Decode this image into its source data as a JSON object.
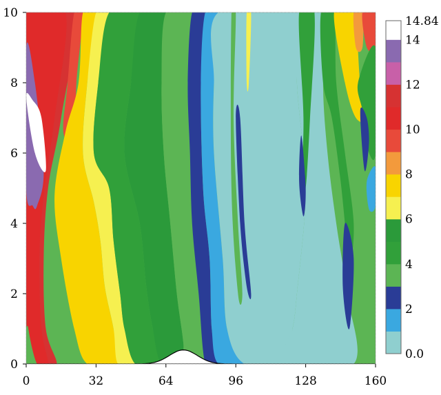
{
  "chart_data": {
    "type": "heatmap",
    "title": "",
    "xlabel": "",
    "ylabel": "",
    "xlim": [
      0,
      160
    ],
    "ylim": [
      0,
      10
    ],
    "x_ticks": [
      "0",
      "32",
      "64",
      "96",
      "128",
      "160"
    ],
    "y_ticks": [
      "0",
      "2",
      "4",
      "6",
      "8",
      "10"
    ],
    "x_tick_values": [
      0,
      32,
      64,
      96,
      128,
      160
    ],
    "y_tick_values": [
      0,
      2,
      4,
      6,
      8,
      10
    ],
    "colorbar": {
      "min": 0.0,
      "max": 14.84,
      "boundaries": [
        0,
        1,
        2,
        3,
        4,
        5,
        6,
        7,
        8,
        9,
        10,
        11,
        12,
        13,
        14,
        14.84
      ],
      "colors": [
        "#8fcfcf",
        "#3aa8e0",
        "#2a3c96",
        "#5cb554",
        "#31a03a",
        "#2b9a3a",
        "#f6f050",
        "#f8d400",
        "#f39a3c",
        "#e84a3a",
        "#e02a2a",
        "#d63232",
        "#c860a8",
        "#8a6ab0",
        "#ffffff"
      ],
      "tick_labels": [
        "0.0",
        "2",
        "4",
        "6",
        "8",
        "10",
        "12",
        "14",
        "14.84"
      ],
      "tick_values": [
        0,
        2,
        4,
        6,
        8,
        10,
        12,
        14,
        14.84
      ]
    },
    "bottom_bump": {
      "center_x": 72,
      "height": 0.4
    },
    "bands": [
      {
        "level": 11,
        "points": [
          [
            0,
            10
          ],
          [
            22,
            10
          ],
          [
            16,
            7
          ],
          [
            10,
            5
          ],
          [
            8,
            3
          ],
          [
            9,
            1
          ],
          [
            14,
            0
          ],
          [
            7,
            0
          ],
          [
            2,
            1
          ],
          [
            0,
            2.5
          ]
        ]
      },
      {
        "level": 10,
        "points": [
          [
            0,
            10
          ],
          [
            18,
            10
          ],
          [
            13,
            7
          ],
          [
            8,
            4.8
          ],
          [
            6,
            3
          ],
          [
            7,
            1
          ],
          [
            10,
            0
          ],
          [
            5,
            0
          ],
          [
            1,
            1
          ],
          [
            0,
            2
          ]
        ]
      },
      {
        "level": 13,
        "points": [
          [
            0,
            9
          ],
          [
            4,
            8
          ],
          [
            8,
            5.5
          ],
          [
            5,
            4.5
          ],
          [
            3,
            4.5
          ],
          [
            0,
            5
          ]
        ]
      },
      {
        "level": 14,
        "points": [
          [
            0,
            7.6
          ],
          [
            4,
            6
          ],
          [
            9,
            5.5
          ],
          [
            7,
            7
          ],
          [
            3,
            7.5
          ]
        ]
      },
      {
        "level": 9,
        "points": [
          [
            22,
            10
          ],
          [
            26,
            10
          ],
          [
            23,
            8
          ],
          [
            22,
            6.2
          ],
          [
            17,
            6.6
          ],
          [
            19,
            8
          ]
        ]
      },
      {
        "level": 7,
        "points": [
          [
            26,
            10
          ],
          [
            32,
            10
          ],
          [
            28,
            8
          ],
          [
            26,
            6
          ],
          [
            31,
            4.6
          ],
          [
            34,
            3.5
          ],
          [
            36,
            2.2
          ],
          [
            40,
            1
          ],
          [
            42,
            0
          ],
          [
            28,
            0
          ],
          [
            22,
            1
          ],
          [
            16,
            3
          ],
          [
            13,
            4.8
          ],
          [
            18,
            6.6
          ],
          [
            24,
            8
          ]
        ]
      },
      {
        "level": 6,
        "points": [
          [
            32,
            10
          ],
          [
            38,
            10
          ],
          [
            33,
            8
          ],
          [
            31,
            6
          ],
          [
            38,
            5
          ],
          [
            40,
            3.5
          ],
          [
            43,
            2
          ],
          [
            45,
            1
          ],
          [
            50,
            0
          ],
          [
            42,
            0
          ],
          [
            40,
            1
          ],
          [
            36,
            2.2
          ],
          [
            34,
            3.5
          ],
          [
            31,
            4.6
          ],
          [
            26,
            6
          ],
          [
            28,
            8
          ]
        ]
      },
      {
        "level": 4,
        "points": [
          [
            38,
            10
          ],
          [
            52,
            10
          ],
          [
            48,
            8
          ],
          [
            45,
            6
          ],
          [
            52,
            4
          ],
          [
            55,
            2.2
          ],
          [
            58,
            1
          ],
          [
            62,
            0
          ],
          [
            50,
            0
          ],
          [
            45,
            1
          ],
          [
            43,
            2
          ],
          [
            40,
            3.5
          ],
          [
            38,
            5
          ],
          [
            31,
            6
          ],
          [
            33,
            8
          ]
        ]
      },
      {
        "level": 5,
        "points": [
          [
            52,
            10
          ],
          [
            64,
            10
          ],
          [
            62,
            8
          ],
          [
            63,
            6
          ],
          [
            66,
            4
          ],
          [
            69,
            2
          ],
          [
            72,
            0.6
          ],
          [
            72,
            0
          ],
          [
            62,
            0
          ],
          [
            58,
            1
          ],
          [
            55,
            2.2
          ],
          [
            52,
            4
          ],
          [
            45,
            6
          ],
          [
            48,
            8
          ]
        ]
      },
      {
        "level": 3,
        "points": [
          [
            64,
            10
          ],
          [
            76,
            10
          ],
          [
            74,
            8
          ],
          [
            75,
            6
          ],
          [
            76,
            4
          ],
          [
            79,
            2
          ],
          [
            82,
            0
          ],
          [
            72,
            0
          ],
          [
            72,
            0.6
          ],
          [
            69,
            2
          ],
          [
            66,
            4
          ],
          [
            63,
            6
          ],
          [
            62,
            8
          ]
        ]
      },
      {
        "level": 2,
        "points": [
          [
            76,
            10
          ],
          [
            82,
            10
          ],
          [
            80,
            8
          ],
          [
            81,
            5
          ],
          [
            84,
            3
          ],
          [
            85,
            1
          ],
          [
            88,
            0
          ],
          [
            82,
            0
          ],
          [
            79,
            2
          ],
          [
            76,
            4
          ],
          [
            75,
            6
          ],
          [
            74,
            8
          ]
        ]
      },
      {
        "level": 1,
        "points": [
          [
            82,
            10
          ],
          [
            88,
            10
          ],
          [
            86,
            8
          ],
          [
            86,
            6
          ],
          [
            90,
            3
          ],
          [
            92,
            1
          ],
          [
            100,
            0
          ],
          [
            88,
            0
          ],
          [
            85,
            1
          ],
          [
            84,
            3
          ],
          [
            81,
            5
          ],
          [
            80,
            8
          ]
        ]
      },
      {
        "level": 0,
        "points": [
          [
            88,
            10
          ],
          [
            125,
            10
          ],
          [
            124,
            8
          ],
          [
            128,
            5
          ],
          [
            124,
            2
          ],
          [
            122,
            1
          ],
          [
            118,
            0
          ],
          [
            100,
            0
          ],
          [
            92,
            1
          ],
          [
            90,
            3
          ],
          [
            86,
            6
          ],
          [
            86,
            8
          ]
        ]
      },
      {
        "level": 3,
        "points": [
          [
            94,
            10
          ],
          [
            96,
            10
          ],
          [
            95,
            7
          ],
          [
            97,
            4
          ],
          [
            99,
            2
          ],
          [
            97,
            2
          ],
          [
            94,
            5
          ]
        ]
      },
      {
        "level": 2,
        "points": [
          [
            96,
            7
          ],
          [
            98,
            4
          ],
          [
            101,
            2.2
          ],
          [
            103,
            2
          ],
          [
            100,
            4
          ],
          [
            98,
            7
          ]
        ]
      },
      {
        "level": 6,
        "points": [
          [
            101,
            10
          ],
          [
            103,
            10
          ],
          [
            102,
            8
          ],
          [
            101,
            8
          ]
        ]
      },
      {
        "level": 0,
        "points": [
          [
            125,
            10
          ],
          [
            138,
            10
          ],
          [
            136,
            8
          ],
          [
            138,
            6
          ],
          [
            142,
            4
          ],
          [
            147,
            2
          ],
          [
            150,
            0
          ],
          [
            118,
            0
          ],
          [
            122,
            1
          ],
          [
            124,
            2
          ],
          [
            128,
            5
          ],
          [
            124,
            8
          ]
        ]
      },
      {
        "level": 4,
        "points": [
          [
            125,
            10
          ],
          [
            132,
            10
          ],
          [
            130,
            7
          ],
          [
            128,
            5
          ],
          [
            126,
            5
          ],
          [
            127,
            7
          ]
        ]
      },
      {
        "level": 2,
        "points": [
          [
            126,
            6.5
          ],
          [
            128,
            5
          ],
          [
            127,
            4.2
          ],
          [
            125,
            5.2
          ]
        ]
      },
      {
        "level": 4,
        "points": [
          [
            135,
            10
          ],
          [
            141,
            10
          ],
          [
            142,
            8
          ],
          [
            146,
            6
          ],
          [
            150,
            4
          ],
          [
            148,
            3
          ],
          [
            144,
            5.2
          ],
          [
            140,
            7
          ],
          [
            136,
            8
          ]
        ]
      },
      {
        "level": 2,
        "points": [
          [
            146,
            4
          ],
          [
            150,
            3
          ],
          [
            148,
            1
          ],
          [
            145,
            2.2
          ]
        ]
      },
      {
        "level": 7,
        "points": [
          [
            141,
            10
          ],
          [
            150,
            10
          ],
          [
            153,
            8
          ],
          [
            156,
            7
          ],
          [
            151,
            7
          ],
          [
            146,
            8
          ]
        ]
      },
      {
        "level": 8,
        "points": [
          [
            150,
            10
          ],
          [
            154,
            10
          ],
          [
            154,
            9
          ],
          [
            151,
            9
          ]
        ]
      },
      {
        "level": 9,
        "points": [
          [
            154,
            10
          ],
          [
            160,
            10
          ],
          [
            160,
            9
          ],
          [
            156,
            9
          ]
        ]
      },
      {
        "level": 4,
        "points": [
          [
            152,
            8
          ],
          [
            160,
            9
          ],
          [
            160,
            6
          ],
          [
            156,
            6.2
          ],
          [
            154,
            7.2
          ]
        ]
      },
      {
        "level": 2,
        "points": [
          [
            153,
            7.2
          ],
          [
            155,
            5.5
          ],
          [
            157,
            6.3
          ],
          [
            156,
            7
          ]
        ]
      },
      {
        "level": 1,
        "points": [
          [
            156,
            5.2
          ],
          [
            160,
            5.6
          ],
          [
            160,
            4.5
          ],
          [
            157,
            4.4
          ]
        ]
      }
    ]
  }
}
